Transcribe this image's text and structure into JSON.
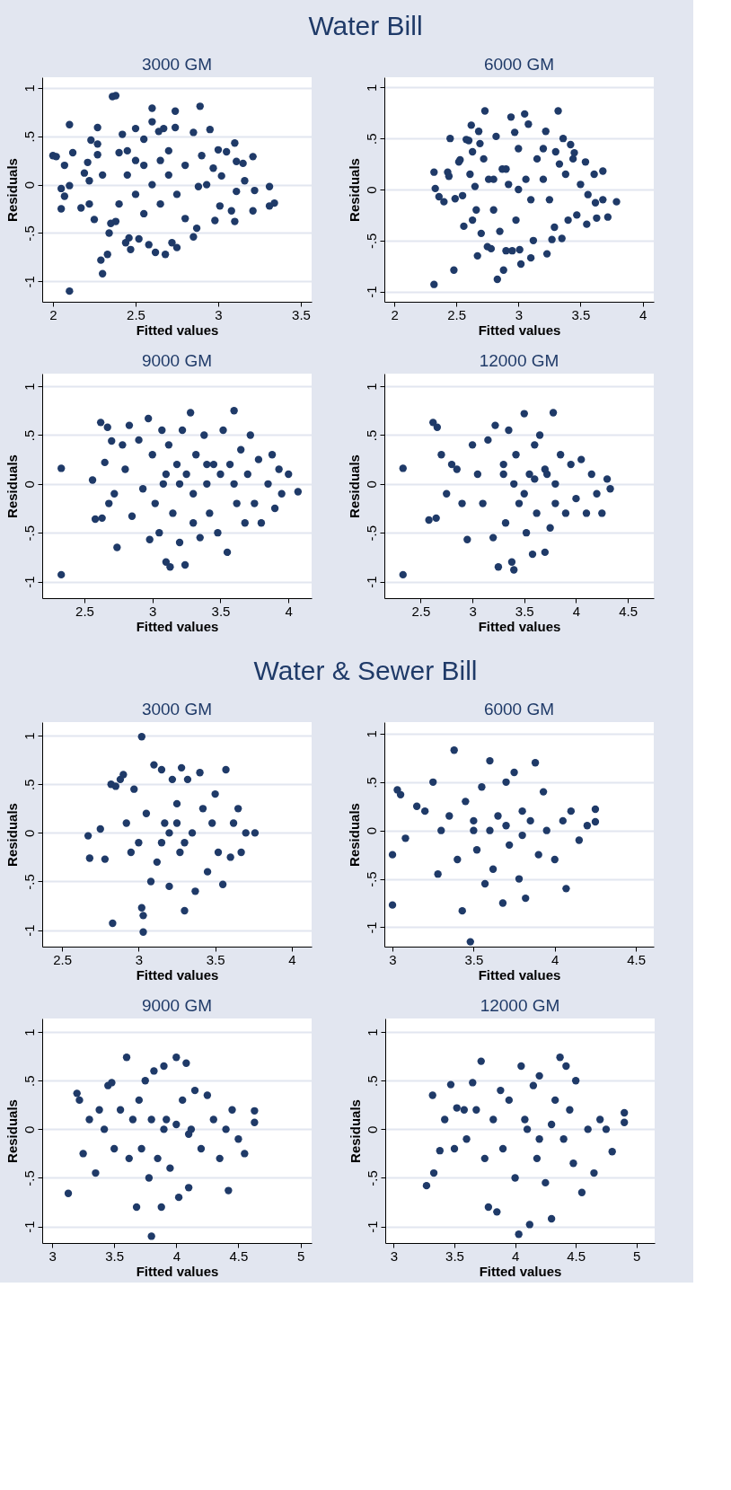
{
  "chart_data": [
    {
      "type": "scatter",
      "annotations": [
        "Water Bill"
      ],
      "title": "3000 GM",
      "xlabel": "Fitted values",
      "ylabel": "Residuals",
      "color": "#1f3a68",
      "marker": "circle",
      "grid": "y",
      "xlim": [
        1.935,
        3.565
      ],
      "ylim": [
        -1.21,
        1.11
      ],
      "xticks": [
        2,
        2.5,
        3,
        3.5
      ],
      "yticks": [
        {
          "value": -1,
          "label": "-1"
        },
        {
          "value": -0.5,
          "label": "-.5"
        },
        {
          "value": 0,
          "label": "0"
        },
        {
          "value": 0.5,
          "label": ".5"
        },
        {
          "value": 1,
          "label": "1"
        }
      ],
      "x": [
        2.0,
        2.02,
        2.05,
        2.05,
        2.07,
        2.07,
        2.1,
        2.1,
        2.1,
        2.12,
        2.17,
        2.19,
        2.21,
        2.22,
        2.22,
        2.23,
        2.27,
        2.27,
        2.25,
        2.27,
        2.29,
        2.3,
        2.33,
        2.34,
        2.36,
        2.38,
        2.35,
        2.38,
        2.4,
        2.42,
        2.44,
        2.46,
        2.47,
        2.5,
        2.5,
        2.45,
        2.5,
        2.52,
        2.55,
        2.58,
        2.6,
        2.6,
        2.62,
        2.64,
        2.67,
        2.68,
        2.7,
        2.72,
        2.74,
        2.74,
        2.75,
        2.6,
        2.65,
        2.7,
        2.55,
        2.4,
        2.8,
        2.8,
        2.85,
        2.85,
        2.87,
        2.89,
        2.9,
        2.93,
        2.95,
        2.97,
        2.98,
        3.0,
        3.02,
        3.01,
        3.05,
        3.08,
        3.1,
        3.1,
        3.11,
        3.11,
        3.15,
        3.16,
        3.21,
        3.21,
        3.22,
        3.31,
        3.31,
        3.34,
        2.88,
        2.3,
        2.45,
        2.65,
        2.75,
        2.55
      ],
      "values": [
        0.3,
        0.29,
        -0.25,
        -0.04,
        -0.12,
        0.2,
        0.62,
        -0.01,
        -1.1,
        0.33,
        -0.24,
        0.12,
        0.23,
        -0.2,
        0.04,
        0.46,
        0.59,
        0.42,
        -0.36,
        0.31,
        -0.78,
        -0.92,
        -0.72,
        -0.5,
        0.91,
        0.92,
        -0.4,
        -0.38,
        0.33,
        0.52,
        -0.6,
        -0.55,
        -0.67,
        0.58,
        0.25,
        0.1,
        -0.1,
        -0.56,
        0.47,
        -0.62,
        0.79,
        0.65,
        -0.7,
        0.55,
        0.58,
        -0.72,
        0.35,
        -0.6,
        0.76,
        0.59,
        -0.65,
        0.0,
        -0.2,
        0.1,
        0.2,
        -0.2,
        0.2,
        -0.35,
        0.54,
        -0.54,
        -0.45,
        0.81,
        0.3,
        0.0,
        0.57,
        0.17,
        -0.37,
        0.36,
        0.09,
        -0.22,
        0.34,
        -0.27,
        0.43,
        -0.38,
        -0.07,
        0.24,
        0.22,
        0.04,
        0.29,
        -0.27,
        -0.06,
        -0.02,
        -0.22,
        -0.19,
        -0.02,
        0.1,
        0.35,
        0.25,
        -0.1,
        -0.3
      ]
    },
    {
      "type": "scatter",
      "title": "6000 GM",
      "xlabel": "Fitted values",
      "ylabel": "Residuals",
      "color": "#1f3a68",
      "marker": "circle",
      "grid": "y",
      "xlim": [
        1.92,
        4.09
      ],
      "ylim": [
        -1.1,
        1.1
      ],
      "xticks": [
        2,
        2.5,
        3,
        3.5,
        4
      ],
      "yticks": [
        {
          "value": -1,
          "label": "-1"
        },
        {
          "value": -0.5,
          "label": "-.5"
        },
        {
          "value": 0,
          "label": "0"
        },
        {
          "value": 0.5,
          "label": ".5"
        },
        {
          "value": 1,
          "label": "1"
        }
      ],
      "x": [
        2.32,
        2.33,
        2.36,
        2.4,
        2.43,
        2.44,
        2.45,
        2.48,
        2.32,
        2.49,
        2.52,
        2.53,
        2.55,
        2.56,
        2.58,
        2.6,
        2.61,
        2.62,
        2.63,
        2.63,
        2.65,
        2.66,
        2.67,
        2.68,
        2.69,
        2.7,
        2.72,
        2.73,
        2.75,
        2.76,
        2.78,
        2.8,
        2.82,
        2.83,
        2.85,
        2.87,
        2.88,
        2.9,
        2.92,
        2.94,
        2.95,
        2.97,
        2.98,
        3.0,
        3.01,
        3.02,
        3.05,
        3.06,
        3.08,
        3.1,
        3.12,
        3.15,
        3.2,
        3.22,
        3.23,
        3.25,
        3.27,
        3.29,
        3.3,
        3.32,
        3.33,
        3.35,
        3.36,
        3.38,
        3.4,
        3.42,
        3.44,
        3.45,
        3.47,
        3.5,
        3.54,
        3.55,
        3.56,
        3.61,
        3.62,
        3.63,
        3.68,
        3.68,
        3.72,
        3.79,
        2.9,
        3.0,
        3.1,
        2.8,
        3.2
      ],
      "values": [
        0.17,
        0.01,
        -0.07,
        -0.12,
        0.17,
        0.13,
        0.5,
        -0.79,
        -0.93,
        -0.09,
        0.27,
        0.29,
        -0.06,
        -0.36,
        0.49,
        0.48,
        0.15,
        0.63,
        0.37,
        -0.3,
        0.03,
        -0.2,
        -0.65,
        0.57,
        0.45,
        -0.43,
        0.3,
        0.77,
        -0.56,
        0.1,
        -0.58,
        -0.2,
        0.52,
        -0.88,
        -0.41,
        0.2,
        -0.79,
        -0.6,
        0.05,
        0.71,
        -0.6,
        0.56,
        -0.3,
        0.4,
        -0.59,
        -0.73,
        0.74,
        0.1,
        0.64,
        -0.67,
        -0.5,
        0.3,
        0.4,
        0.57,
        -0.63,
        -0.1,
        -0.49,
        -0.37,
        0.37,
        0.77,
        0.25,
        -0.48,
        0.5,
        0.15,
        -0.3,
        0.44,
        0.3,
        0.36,
        -0.25,
        0.05,
        0.27,
        -0.34,
        -0.05,
        0.15,
        -0.13,
        -0.28,
        0.18,
        -0.1,
        -0.27,
        -0.12,
        0.2,
        0.0,
        -0.1,
        0.1,
        0.1
      ]
    },
    {
      "type": "scatter",
      "title": "9000 GM",
      "xlabel": "Fitted values",
      "ylabel": "Residuals",
      "color": "#1f3a68",
      "marker": "circle",
      "grid": "y",
      "xlim": [
        2.19,
        4.17
      ],
      "ylim": [
        -1.17,
        1.13
      ],
      "xticks": [
        2.5,
        3,
        3.5,
        4
      ],
      "yticks": [
        {
          "value": -1,
          "label": "-1"
        },
        {
          "value": -0.5,
          "label": "-.5"
        },
        {
          "value": 0,
          "label": "0"
        },
        {
          "value": 0.5,
          "label": ".5"
        },
        {
          "value": 1,
          "label": "1"
        }
      ],
      "x": [
        2.33,
        2.33,
        2.56,
        2.58,
        2.62,
        2.63,
        2.65,
        2.67,
        2.68,
        2.7,
        2.72,
        2.74,
        2.78,
        2.8,
        2.83,
        2.85,
        2.9,
        2.93,
        2.97,
        2.98,
        3.0,
        3.02,
        3.05,
        3.07,
        3.08,
        3.1,
        3.12,
        3.13,
        3.15,
        3.18,
        3.2,
        3.22,
        3.24,
        3.25,
        3.28,
        3.3,
        3.32,
        3.35,
        3.38,
        3.4,
        3.42,
        3.45,
        3.48,
        3.5,
        3.52,
        3.55,
        3.57,
        3.6,
        3.62,
        3.65,
        3.68,
        3.7,
        3.72,
        3.75,
        3.78,
        3.8,
        3.85,
        3.88,
        3.9,
        3.93,
        3.95,
        4.0,
        4.07,
        3.2,
        3.4,
        3.1,
        3.6,
        3.3
      ],
      "values": [
        0.16,
        -0.93,
        0.04,
        -0.36,
        0.63,
        -0.35,
        0.22,
        0.58,
        -0.2,
        0.44,
        -0.1,
        -0.65,
        0.4,
        0.15,
        0.6,
        -0.33,
        0.45,
        -0.05,
        0.67,
        -0.57,
        0.3,
        -0.2,
        -0.5,
        0.55,
        0.0,
        -0.8,
        0.4,
        -0.85,
        -0.3,
        0.2,
        -0.6,
        0.55,
        -0.83,
        0.1,
        0.73,
        -0.4,
        0.3,
        -0.55,
        0.5,
        0.0,
        -0.3,
        0.2,
        -0.5,
        0.1,
        0.55,
        -0.7,
        0.2,
        0.75,
        -0.2,
        0.35,
        -0.4,
        0.1,
        0.5,
        -0.2,
        0.25,
        -0.4,
        0.0,
        0.3,
        -0.25,
        0.15,
        -0.1,
        0.1,
        -0.08,
        0.0,
        0.2,
        0.1,
        0.0,
        -0.1
      ]
    },
    {
      "type": "scatter",
      "title": "12000 GM",
      "xlabel": "Fitted values",
      "ylabel": "Residuals",
      "color": "#1f3a68",
      "marker": "circle",
      "grid": "y",
      "xlim": [
        2.15,
        4.75
      ],
      "ylim": [
        -1.17,
        1.13
      ],
      "xticks": [
        2.5,
        3,
        3.5,
        4,
        4.5
      ],
      "yticks": [
        {
          "value": -1,
          "label": "-1"
        },
        {
          "value": -0.5,
          "label": "-.5"
        },
        {
          "value": 0,
          "label": "0"
        },
        {
          "value": 0.5,
          "label": ".5"
        },
        {
          "value": 1,
          "label": "1"
        }
      ],
      "x": [
        2.33,
        2.33,
        2.58,
        2.62,
        2.66,
        2.65,
        2.7,
        2.75,
        2.8,
        2.85,
        2.9,
        2.95,
        3.0,
        3.05,
        3.1,
        3.15,
        3.2,
        3.22,
        3.25,
        3.3,
        3.32,
        3.35,
        3.38,
        3.4,
        3.42,
        3.45,
        3.5,
        3.52,
        3.55,
        3.58,
        3.6,
        3.62,
        3.65,
        3.7,
        3.72,
        3.75,
        3.78,
        3.8,
        3.85,
        3.9,
        3.95,
        4.0,
        4.05,
        4.1,
        4.15,
        4.2,
        4.25,
        4.3,
        4.33,
        3.4,
        3.6,
        3.5,
        3.7,
        3.3,
        3.8
      ],
      "values": [
        0.16,
        -0.93,
        -0.37,
        0.63,
        0.58,
        -0.35,
        0.3,
        -0.1,
        0.2,
        0.15,
        -0.2,
        -0.57,
        0.4,
        0.1,
        -0.2,
        0.45,
        -0.55,
        0.6,
        -0.85,
        0.2,
        -0.4,
        0.55,
        -0.8,
        -0.88,
        0.3,
        -0.2,
        0.72,
        -0.5,
        0.1,
        -0.72,
        0.4,
        -0.3,
        0.5,
        -0.7,
        0.1,
        -0.45,
        0.73,
        -0.2,
        0.3,
        -0.3,
        0.2,
        -0.15,
        0.25,
        -0.3,
        0.1,
        -0.1,
        -0.3,
        0.05,
        -0.05,
        0.0,
        0.05,
        -0.1,
        0.15,
        0.1,
        0.0
      ]
    },
    {
      "type": "scatter",
      "annotations": [
        "Water & Sewer Bill"
      ],
      "title": "3000 GM",
      "xlabel": "Fitted values",
      "ylabel": "Residuals",
      "color": "#1f3a68",
      "marker": "circle",
      "grid": "y",
      "xlim": [
        2.37,
        4.13
      ],
      "ylim": [
        -1.17,
        1.14
      ],
      "xticks": [
        2.5,
        3,
        3.5,
        4
      ],
      "yticks": [
        {
          "value": -1,
          "label": "-1"
        },
        {
          "value": -0.5,
          "label": "-.5"
        },
        {
          "value": 0,
          "label": "0"
        },
        {
          "value": 0.5,
          "label": ".5"
        },
        {
          "value": 1,
          "label": "1"
        }
      ],
      "x": [
        2.67,
        2.68,
        2.75,
        2.78,
        2.82,
        2.83,
        2.85,
        2.88,
        2.9,
        2.92,
        2.95,
        2.97,
        3.0,
        3.02,
        3.02,
        3.03,
        3.03,
        3.05,
        3.08,
        3.1,
        3.12,
        3.15,
        3.17,
        3.2,
        3.22,
        3.25,
        3.27,
        3.28,
        3.3,
        3.32,
        3.35,
        3.37,
        3.4,
        3.42,
        3.45,
        3.48,
        3.5,
        3.52,
        3.55,
        3.57,
        3.6,
        3.62,
        3.65,
        3.67,
        3.7,
        3.76,
        3.2,
        3.25,
        3.3,
        3.15
      ],
      "values": [
        -0.03,
        -0.26,
        0.04,
        -0.27,
        0.5,
        -0.93,
        0.48,
        0.55,
        0.6,
        0.1,
        -0.2,
        0.45,
        -0.1,
        0.99,
        -0.77,
        -0.85,
        -1.02,
        0.2,
        -0.5,
        0.7,
        -0.3,
        0.65,
        0.1,
        -0.55,
        0.55,
        0.3,
        -0.2,
        0.67,
        -0.8,
        0.55,
        0.0,
        -0.6,
        0.62,
        0.25,
        -0.4,
        0.1,
        0.4,
        -0.2,
        -0.53,
        0.65,
        -0.25,
        0.1,
        0.25,
        -0.2,
        0.0,
        0.0,
        0.0,
        0.1,
        -0.1,
        -0.1
      ]
    },
    {
      "type": "scatter",
      "title": "6000 GM",
      "xlabel": "Fitted values",
      "ylabel": "Residuals",
      "color": "#1f3a68",
      "marker": "circle",
      "grid": "y",
      "xlim": [
        2.95,
        4.61
      ],
      "ylim": [
        -1.2,
        1.12
      ],
      "xticks": [
        3,
        3.5,
        4,
        4.5
      ],
      "yticks": [
        {
          "value": -1,
          "label": "-1"
        },
        {
          "value": -0.5,
          "label": "-.5"
        },
        {
          "value": 0,
          "label": "0"
        },
        {
          "value": 0.5,
          "label": ".5"
        },
        {
          "value": 1,
          "label": "1"
        }
      ],
      "x": [
        3.0,
        3.0,
        3.03,
        3.05,
        3.08,
        3.15,
        3.2,
        3.25,
        3.28,
        3.3,
        3.35,
        3.38,
        3.4,
        3.43,
        3.45,
        3.48,
        3.5,
        3.52,
        3.55,
        3.57,
        3.6,
        3.62,
        3.65,
        3.68,
        3.7,
        3.72,
        3.75,
        3.78,
        3.8,
        3.82,
        3.85,
        3.88,
        3.9,
        3.93,
        3.95,
        4.0,
        4.05,
        4.07,
        4.1,
        4.15,
        4.2,
        4.25,
        4.25,
        3.6,
        3.7,
        3.8,
        3.5
      ],
      "values": [
        -0.25,
        -0.77,
        0.42,
        0.37,
        -0.08,
        0.25,
        0.2,
        0.5,
        -0.45,
        0.0,
        0.15,
        0.83,
        -0.3,
        -0.83,
        0.3,
        -1.15,
        0.1,
        -0.2,
        0.45,
        -0.55,
        0.72,
        -0.4,
        0.15,
        -0.75,
        0.5,
        -0.15,
        0.6,
        -0.5,
        0.2,
        -0.7,
        0.1,
        0.7,
        -0.25,
        0.4,
        0.0,
        -0.3,
        0.1,
        -0.6,
        0.2,
        -0.1,
        0.05,
        0.22,
        0.09,
        0.0,
        0.05,
        -0.05,
        0.0
      ]
    },
    {
      "type": "scatter",
      "title": "9000 GM",
      "xlabel": "Fitted values",
      "ylabel": "Residuals",
      "color": "#1f3a68",
      "marker": "circle",
      "grid": "y",
      "xlim": [
        2.92,
        5.09
      ],
      "ylim": [
        -1.17,
        1.14
      ],
      "xticks": [
        3,
        3.5,
        4,
        4.5,
        5
      ],
      "yticks": [
        {
          "value": -1,
          "label": "-1"
        },
        {
          "value": -0.5,
          "label": "-.5"
        },
        {
          "value": 0,
          "label": "0"
        },
        {
          "value": 0.5,
          "label": ".5"
        },
        {
          "value": 1,
          "label": "1"
        }
      ],
      "x": [
        3.13,
        3.2,
        3.22,
        3.25,
        3.3,
        3.35,
        3.38,
        3.42,
        3.45,
        3.48,
        3.5,
        3.55,
        3.6,
        3.62,
        3.65,
        3.68,
        3.7,
        3.72,
        3.75,
        3.78,
        3.8,
        3.82,
        3.85,
        3.88,
        3.9,
        3.92,
        3.95,
        4.0,
        4.02,
        4.05,
        4.08,
        4.1,
        4.12,
        4.15,
        4.2,
        4.25,
        4.3,
        4.35,
        4.4,
        4.42,
        4.45,
        4.5,
        4.55,
        4.63,
        4.63,
        3.9,
        4.0,
        3.8,
        4.1
      ],
      "values": [
        -0.66,
        0.37,
        0.3,
        -0.25,
        0.1,
        -0.45,
        0.2,
        0.0,
        0.45,
        0.48,
        -0.2,
        0.2,
        0.74,
        -0.3,
        0.1,
        -0.8,
        0.3,
        -0.2,
        0.5,
        -0.5,
        -1.1,
        0.6,
        -0.3,
        -0.8,
        0.65,
        0.1,
        -0.4,
        0.74,
        -0.7,
        0.3,
        0.68,
        -0.6,
        0.0,
        0.4,
        -0.2,
        0.35,
        0.1,
        -0.3,
        0.0,
        -0.63,
        0.2,
        -0.1,
        -0.25,
        0.19,
        0.07,
        0.0,
        0.05,
        0.1,
        -0.05
      ]
    },
    {
      "type": "scatter",
      "title": "12000 GM",
      "xlabel": "Fitted values",
      "ylabel": "Residuals",
      "color": "#1f3a68",
      "marker": "circle",
      "grid": "y",
      "xlim": [
        2.93,
        5.15
      ],
      "ylim": [
        -1.17,
        1.14
      ],
      "xticks": [
        3,
        3.5,
        4,
        4.5,
        5
      ],
      "yticks": [
        {
          "value": -1,
          "label": "-1"
        },
        {
          "value": -0.5,
          "label": "-.5"
        },
        {
          "value": 0,
          "label": "0"
        },
        {
          "value": 0.5,
          "label": ".5"
        },
        {
          "value": 1,
          "label": "1"
        }
      ],
      "x": [
        3.27,
        3.32,
        3.33,
        3.38,
        3.42,
        3.47,
        3.5,
        3.52,
        3.58,
        3.6,
        3.65,
        3.68,
        3.72,
        3.75,
        3.78,
        3.82,
        3.85,
        3.88,
        3.9,
        3.95,
        4.0,
        4.03,
        4.05,
        4.08,
        4.12,
        4.15,
        4.18,
        4.2,
        4.25,
        4.3,
        4.33,
        4.37,
        4.4,
        4.42,
        4.45,
        4.48,
        4.5,
        4.55,
        4.6,
        4.65,
        4.7,
        4.75,
        4.8,
        4.9,
        4.9,
        4.1,
        4.3,
        4.2
      ],
      "values": [
        -0.58,
        0.35,
        -0.45,
        -0.22,
        0.1,
        0.46,
        -0.2,
        0.22,
        0.2,
        -0.1,
        0.48,
        0.2,
        0.7,
        -0.3,
        -0.8,
        0.1,
        -0.85,
        0.4,
        -0.2,
        0.3,
        -0.5,
        -1.08,
        0.65,
        0.1,
        -0.98,
        0.45,
        -0.3,
        0.55,
        -0.55,
        -0.92,
        0.3,
        0.74,
        -0.1,
        0.65,
        0.2,
        -0.35,
        0.5,
        -0.65,
        0.0,
        -0.45,
        0.1,
        0.0,
        -0.23,
        0.17,
        0.07,
        0.0,
        0.05,
        -0.1
      ]
    }
  ]
}
